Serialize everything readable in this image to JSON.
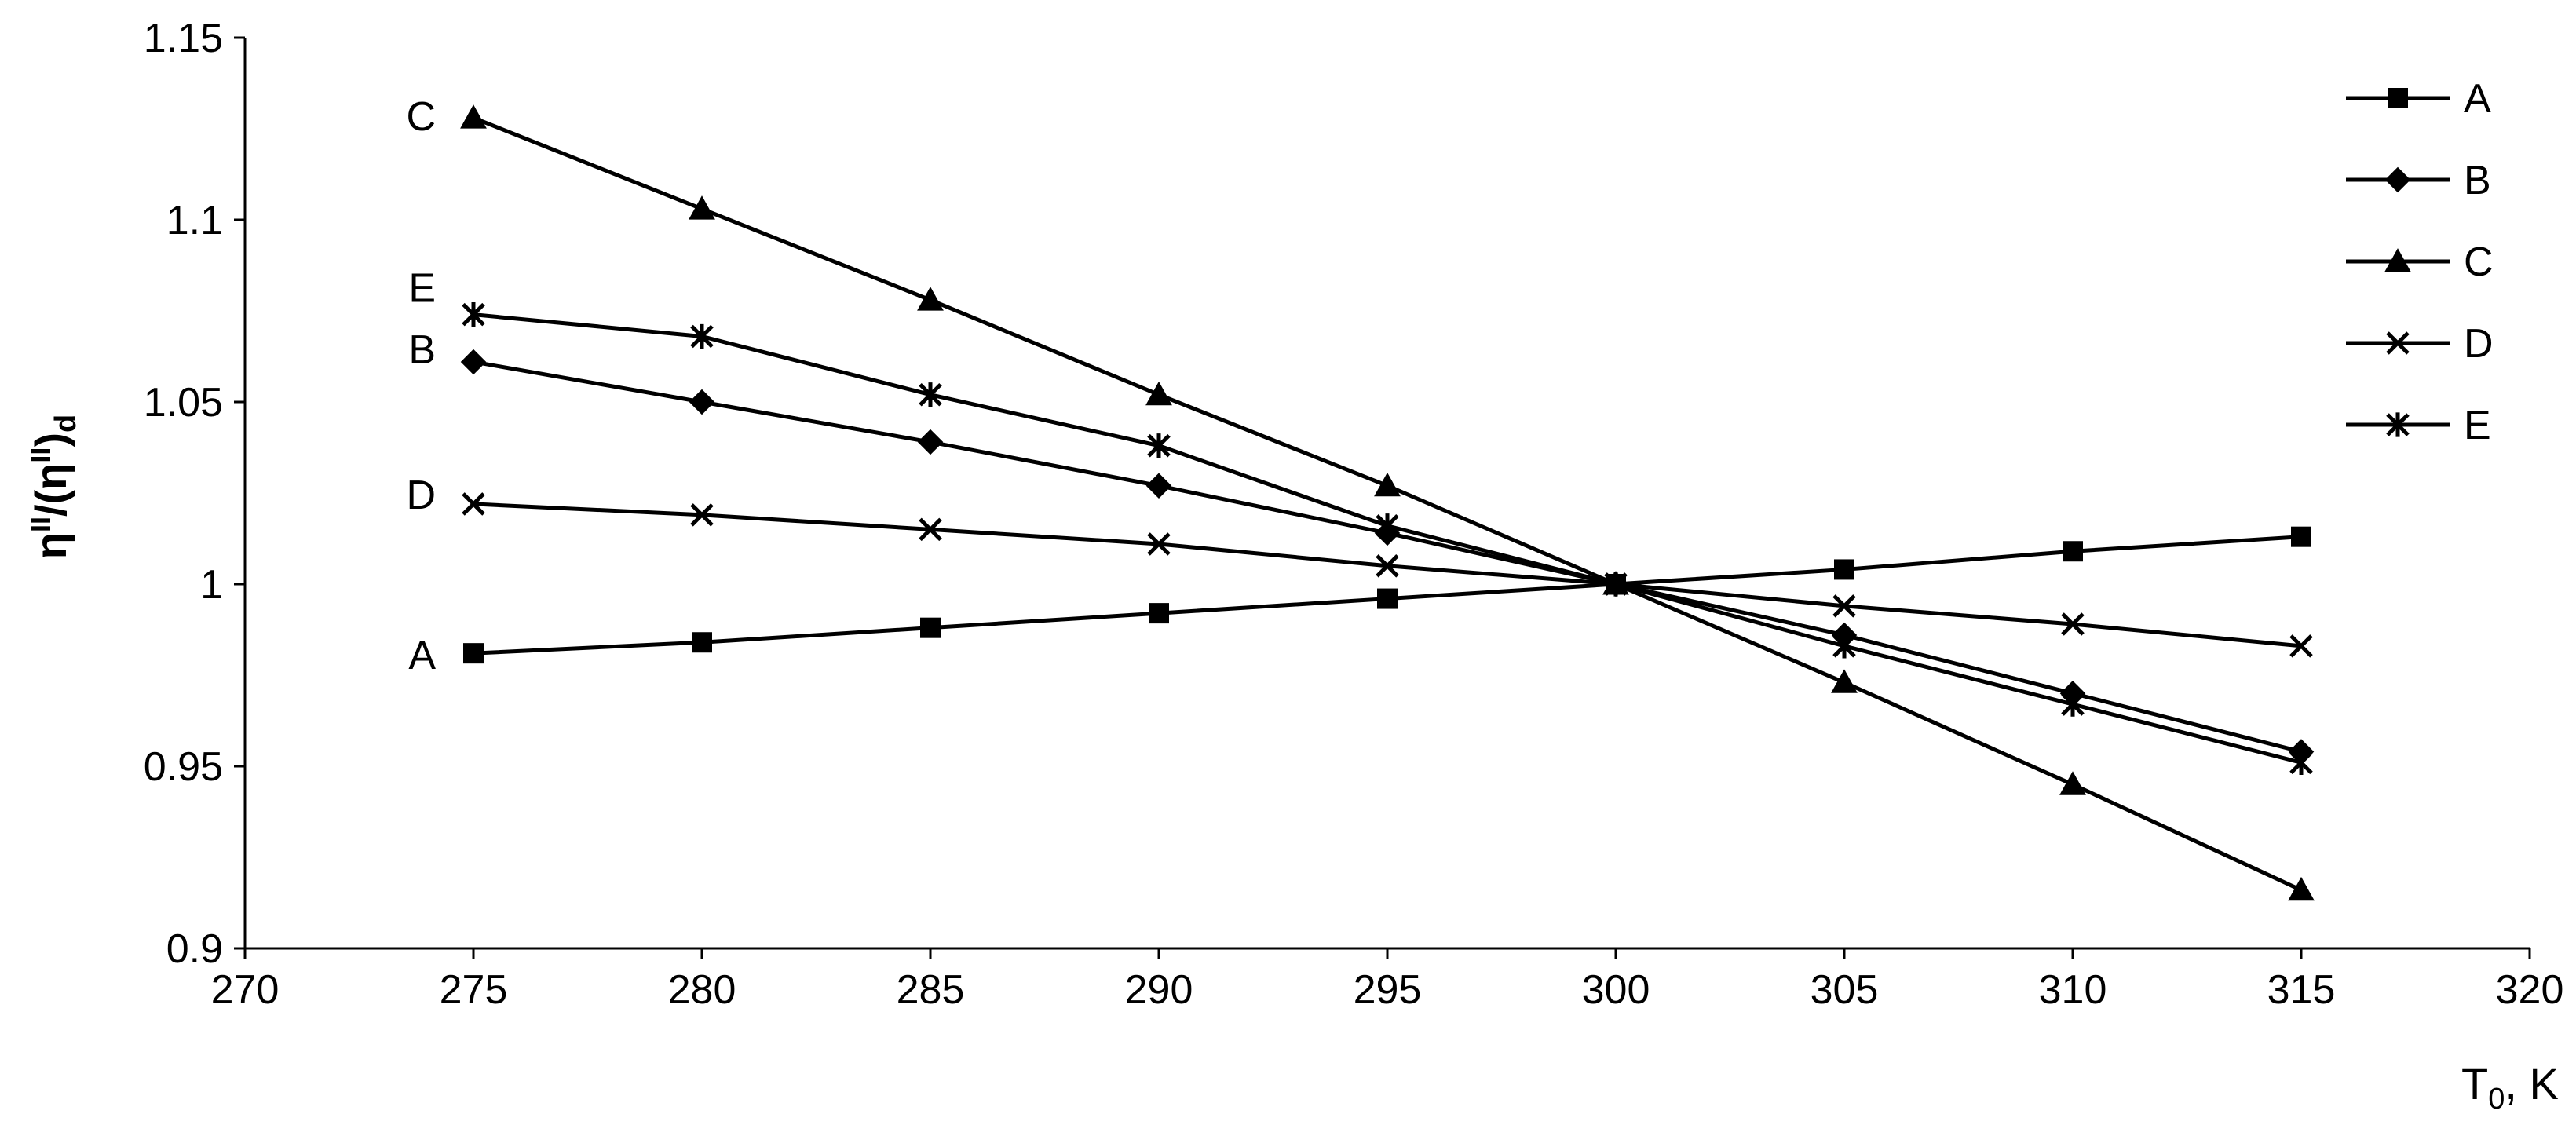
{
  "chart_data": {
    "type": "line",
    "x": [
      275,
      280,
      285,
      290,
      295,
      300,
      305,
      310,
      315
    ],
    "xlim": [
      270,
      320
    ],
    "ylim": [
      0.9,
      1.15
    ],
    "xticks": [
      270,
      275,
      280,
      285,
      290,
      295,
      300,
      305,
      310,
      315,
      320
    ],
    "yticks": [
      0.9,
      0.95,
      1,
      1.05,
      1.1,
      1.15
    ],
    "xtick_labels": [
      "270",
      "275",
      "280",
      "285",
      "290",
      "295",
      "300",
      "305",
      "310",
      "315",
      "320"
    ],
    "ytick_labels": [
      "0.9",
      "0.95",
      "1",
      "1.05",
      "1.1",
      "1.15"
    ],
    "xlabel": {
      "main": "T",
      "sub": "0",
      "rest": ", K"
    },
    "ylabel": {
      "main": "η",
      "sup": "II",
      "mid": "/(η",
      "sup2": "II",
      "close": ")",
      "sub": "d"
    },
    "grid": false,
    "legend_position": "top-right",
    "series": [
      {
        "name": "A",
        "marker": "square",
        "values": [
          0.981,
          0.984,
          0.988,
          0.992,
          0.996,
          1.0,
          1.004,
          1.009,
          1.013
        ]
      },
      {
        "name": "B",
        "marker": "diamond",
        "values": [
          1.061,
          1.05,
          1.039,
          1.027,
          1.014,
          1.0,
          0.986,
          0.97,
          0.954
        ]
      },
      {
        "name": "C",
        "marker": "triangle",
        "values": [
          1.128,
          1.103,
          1.078,
          1.052,
          1.027,
          1.0,
          0.973,
          0.945,
          0.916
        ]
      },
      {
        "name": "D",
        "marker": "x",
        "values": [
          1.022,
          1.019,
          1.015,
          1.011,
          1.005,
          1.0,
          0.994,
          0.989,
          0.983
        ]
      },
      {
        "name": "E",
        "marker": "asterisk",
        "values": [
          1.074,
          1.068,
          1.052,
          1.038,
          1.016,
          1.0,
          0.983,
          0.967,
          0.951
        ]
      }
    ],
    "annotations": [
      {
        "text": "C",
        "series": "C"
      },
      {
        "text": "E",
        "series": "E"
      },
      {
        "text": "B",
        "series": "B"
      },
      {
        "text": "D",
        "series": "D"
      },
      {
        "text": "A",
        "series": "A"
      }
    ]
  }
}
